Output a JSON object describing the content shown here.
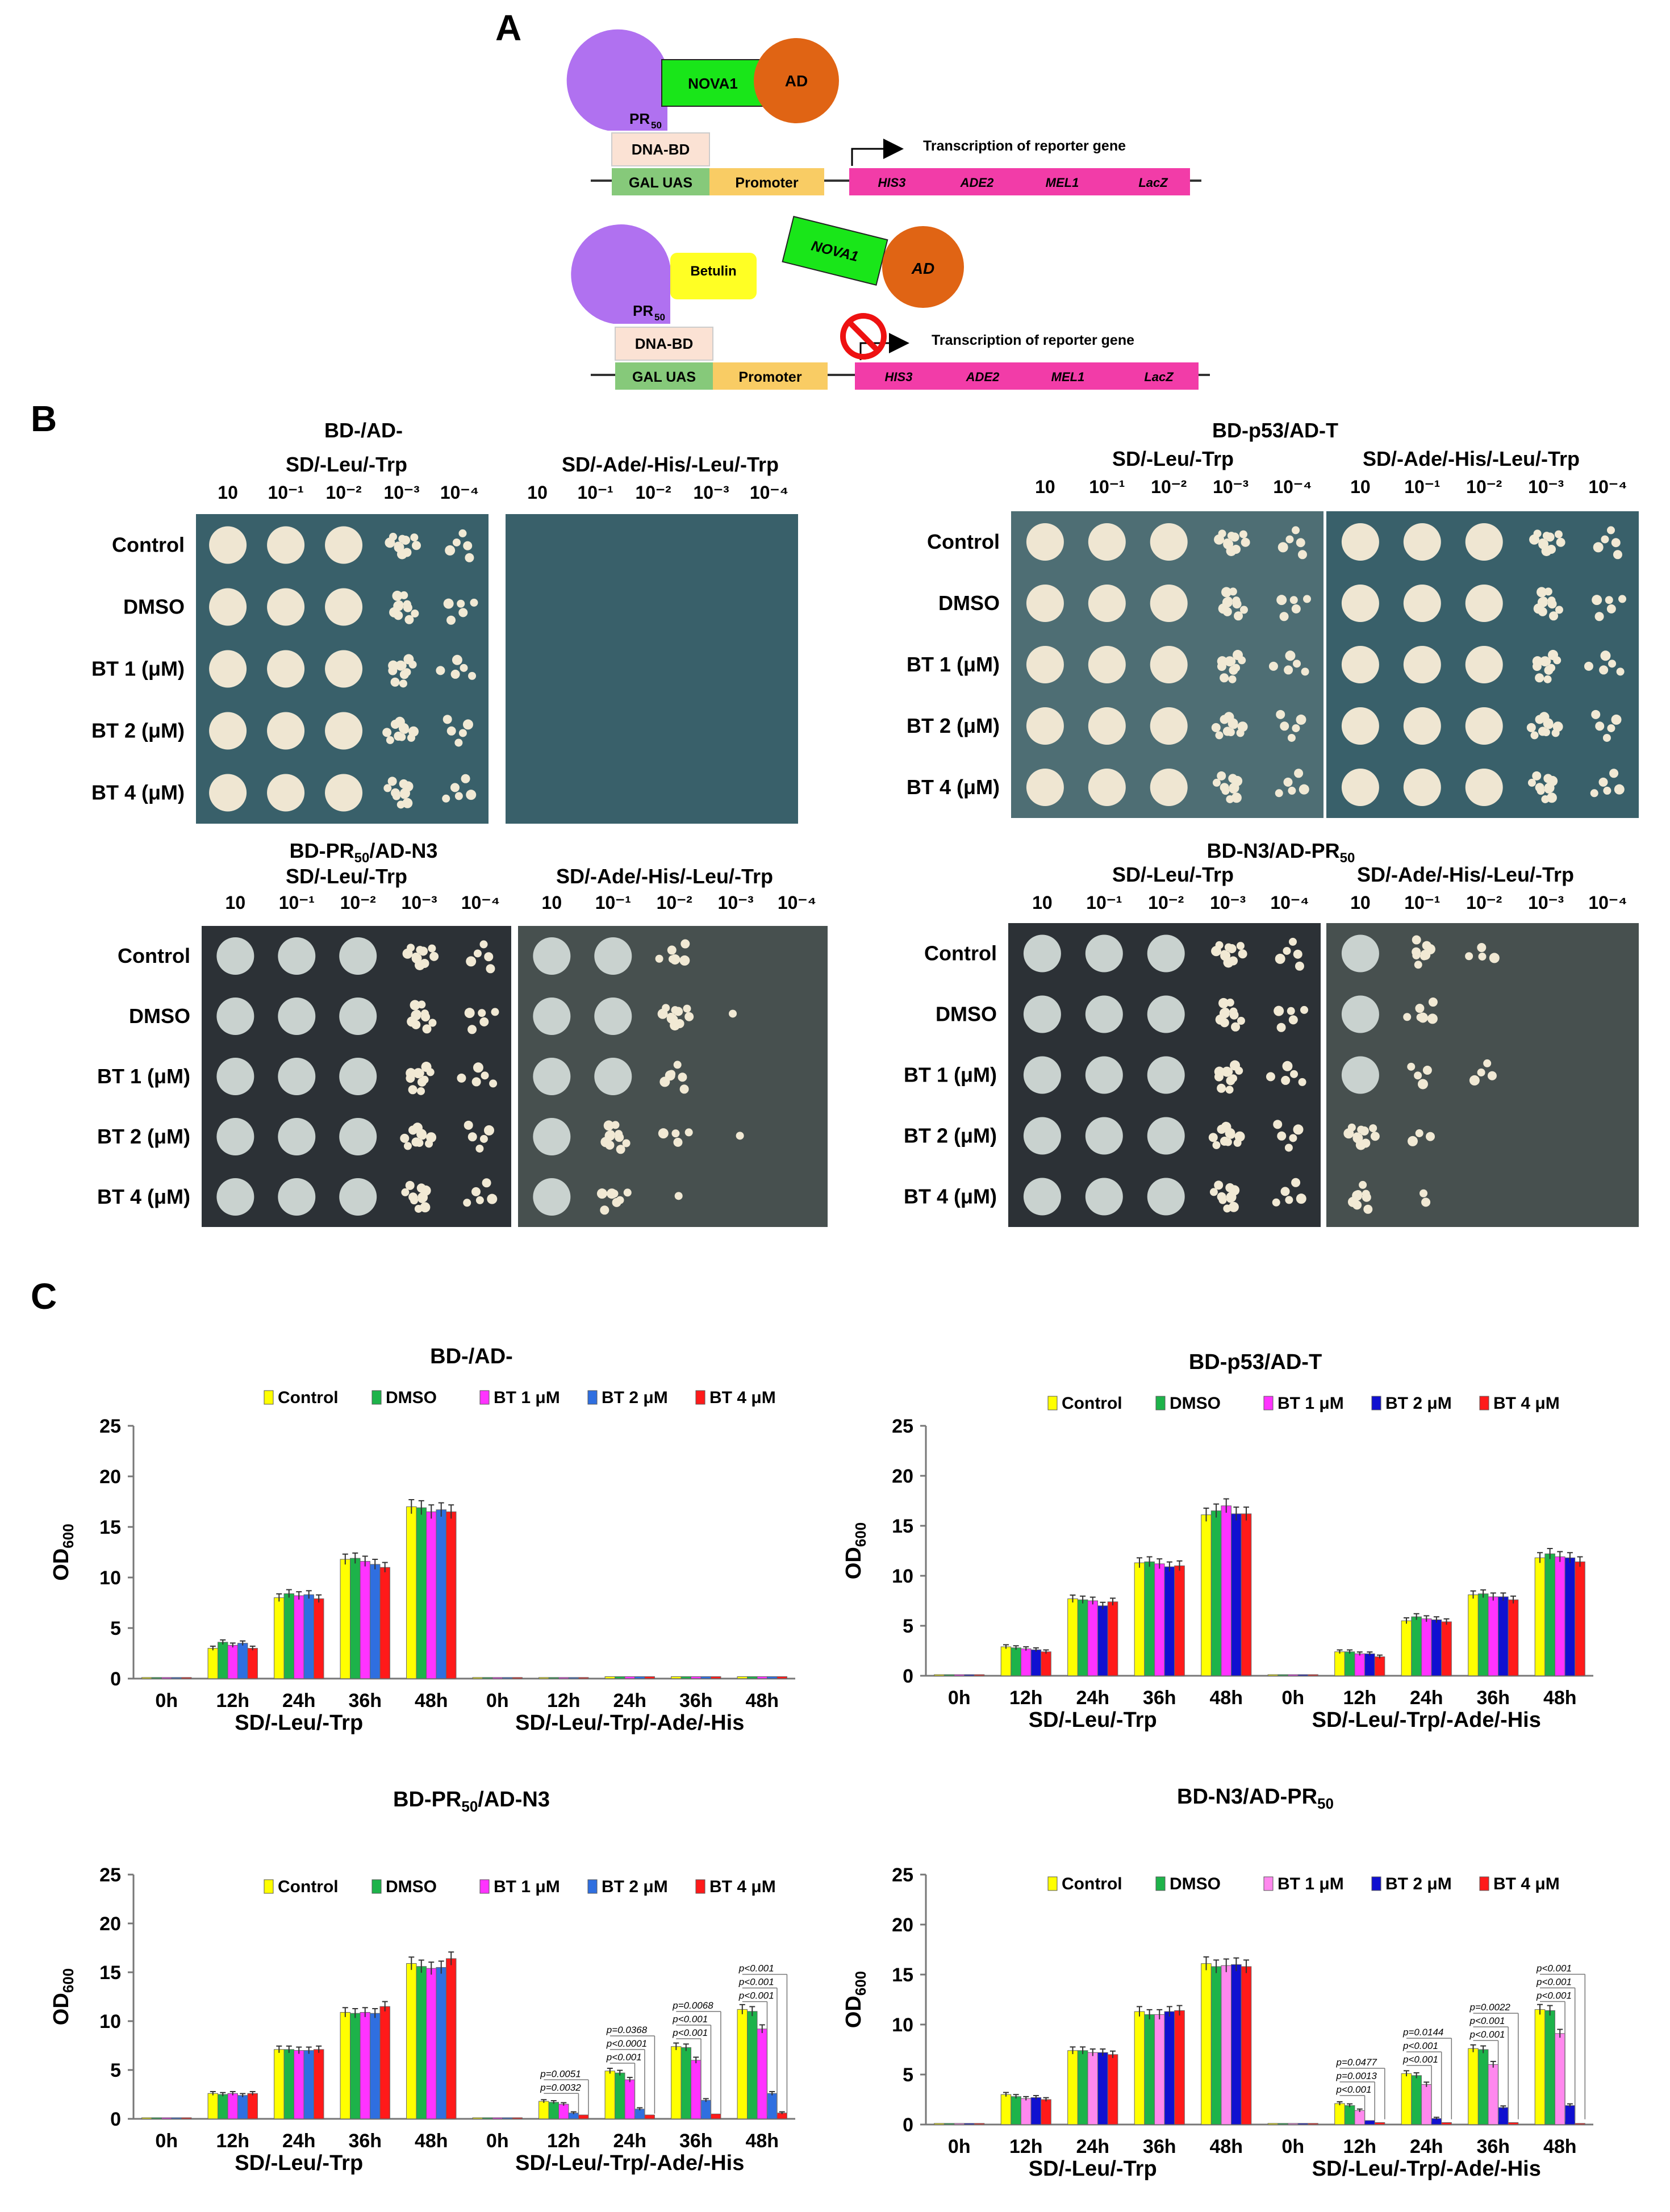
{
  "panels": {
    "a": "A",
    "b": "B",
    "c": "C"
  },
  "panel_a": {
    "nova1": "NOVA1",
    "ad": "AD",
    "pr": "PR",
    "pr_sub": "50",
    "dna_bd": "DNA-BD",
    "gal_uas": "GAL UAS",
    "promoter": "Promoter",
    "betulin": "Betulin",
    "transcription": "Transcription of reporter gene",
    "genes": [
      "HIS3",
      "ADE2",
      "MEL1",
      "LacZ"
    ]
  },
  "panel_b": {
    "dilutions": [
      "10",
      "10⁻¹",
      "10⁻²",
      "10⁻³",
      "10⁻⁴"
    ],
    "rows": [
      "Control",
      "DMSO",
      "BT 1 (μM)",
      "BT 2 (μM)",
      "BT 4 (μM)"
    ],
    "media": [
      "SD/-Leu/-Trp",
      "SD/-Ade/-His/-Leu/-Trp"
    ],
    "titles": [
      {
        "main": "BD-/AD-"
      },
      {
        "main": "BD-p53/AD-T"
      },
      {
        "pre": "BD-PR",
        "sub": "50",
        "post": "/AD-N3"
      },
      {
        "pre": "BD-N3/AD-PR",
        "sub": "50",
        "post": ""
      }
    ]
  },
  "chart_data": [
    {
      "type": "bar",
      "title": "BD-/AD-",
      "ylabel": "OD600",
      "ylim": [
        0,
        25
      ],
      "yticks": [
        "0",
        "5",
        "10",
        "15",
        "20",
        "25"
      ],
      "categories": [
        "0h",
        "12h",
        "24h",
        "36h",
        "48h",
        "0h",
        "12h",
        "24h",
        "36h",
        "48h"
      ],
      "group_labels": [
        "SD/-Leu/-Trp",
        "SD/-Leu/-Trp/-Ade/-His"
      ],
      "series": [
        {
          "name": "Control",
          "color": "#ffff00",
          "values": [
            0.1,
            3.0,
            8.0,
            11.8,
            17.0,
            0.1,
            0.1,
            0.2,
            0.2,
            0.2
          ]
        },
        {
          "name": "DMSO",
          "color": "#1db34a",
          "values": [
            0.1,
            3.6,
            8.4,
            11.9,
            16.9,
            0.1,
            0.1,
            0.2,
            0.2,
            0.2
          ]
        },
        {
          "name": "BT 1 μM",
          "color": "#ff33ff",
          "values": [
            0.1,
            3.3,
            8.2,
            11.6,
            16.5,
            0.1,
            0.1,
            0.2,
            0.2,
            0.2
          ]
        },
        {
          "name": "BT 2 μM",
          "color": "#2f6fe0",
          "values": [
            0.1,
            3.5,
            8.3,
            11.3,
            16.7,
            0.1,
            0.1,
            0.2,
            0.2,
            0.2
          ]
        },
        {
          "name": "BT 4 μM",
          "color": "#ff1a1a",
          "values": [
            0.1,
            3.0,
            7.9,
            11.0,
            16.5,
            0.1,
            0.1,
            0.2,
            0.2,
            0.2
          ]
        }
      ],
      "annotations": []
    },
    {
      "type": "bar",
      "title": "BD-p53/AD-T",
      "ylabel": "OD600",
      "ylim": [
        0,
        25
      ],
      "yticks": [
        "0",
        "5",
        "10",
        "15",
        "20",
        "25"
      ],
      "categories": [
        "0h",
        "12h",
        "24h",
        "36h",
        "48h",
        "0h",
        "12h",
        "24h",
        "36h",
        "48h"
      ],
      "group_labels": [
        "SD/-Leu/-Trp",
        "SD/-Leu/-Trp/-Ade/-His"
      ],
      "series": [
        {
          "name": "Control",
          "color": "#ffff00",
          "values": [
            0.1,
            2.9,
            7.7,
            11.3,
            16.1,
            0.1,
            2.4,
            5.5,
            8.1,
            11.8
          ]
        },
        {
          "name": "DMSO",
          "color": "#1db34a",
          "values": [
            0.1,
            2.8,
            7.6,
            11.4,
            16.5,
            0.1,
            2.4,
            5.9,
            8.2,
            12.2
          ]
        },
        {
          "name": "BT 1 μM",
          "color": "#ff33ff",
          "values": [
            0.1,
            2.7,
            7.5,
            11.2,
            17.0,
            0.1,
            2.2,
            5.7,
            7.9,
            11.9
          ]
        },
        {
          "name": "BT 2 μM",
          "color": "#1010d0",
          "values": [
            0.1,
            2.6,
            7.0,
            10.9,
            16.2,
            0.1,
            2.2,
            5.6,
            7.9,
            11.8
          ]
        },
        {
          "name": "BT 4 μM",
          "color": "#ff1a1a",
          "values": [
            0.1,
            2.4,
            7.4,
            11.0,
            16.2,
            0.1,
            1.9,
            5.4,
            7.6,
            11.4
          ]
        }
      ],
      "annotations": []
    },
    {
      "type": "bar",
      "title_pre": "BD-PR",
      "title_sub": "50",
      "title_post": "/AD-N3",
      "ylabel": "OD600",
      "ylim": [
        0,
        25
      ],
      "yticks": [
        "0",
        "5",
        "10",
        "15",
        "20",
        "25"
      ],
      "categories": [
        "0h",
        "12h",
        "24h",
        "36h",
        "48h",
        "0h",
        "12h",
        "24h",
        "36h",
        "48h"
      ],
      "group_labels": [
        "SD/-Leu/-Trp",
        "SD/-Leu/-Trp/-Ade/-His"
      ],
      "series": [
        {
          "name": "Control",
          "color": "#ffff00",
          "values": [
            0.1,
            2.6,
            7.1,
            10.9,
            15.9,
            0.1,
            1.8,
            4.9,
            7.4,
            11.2
          ]
        },
        {
          "name": "DMSO",
          "color": "#1db34a",
          "values": [
            0.1,
            2.5,
            7.1,
            10.8,
            15.6,
            0.1,
            1.7,
            4.7,
            7.3,
            11.0
          ]
        },
        {
          "name": "BT 1 μM",
          "color": "#ff33ff",
          "values": [
            0.1,
            2.6,
            7.0,
            10.9,
            15.4,
            0.1,
            1.5,
            4.0,
            6.0,
            9.2
          ]
        },
        {
          "name": "BT 2 μM",
          "color": "#2f6fe0",
          "values": [
            0.1,
            2.4,
            7.0,
            10.8,
            15.5,
            0.1,
            0.6,
            1.0,
            1.9,
            2.6
          ]
        },
        {
          "name": "BT 4 μM",
          "color": "#ff1a1a",
          "values": [
            0.1,
            2.6,
            7.1,
            11.5,
            16.4,
            0.1,
            0.4,
            0.4,
            0.5,
            0.6
          ]
        }
      ],
      "annotations": [
        {
          "group": 6,
          "labels": [
            "p=0.0032",
            "p=0.0051"
          ]
        },
        {
          "group": 7,
          "labels": [
            "p<0.001",
            "p<0.0001",
            "p=0.0368"
          ]
        },
        {
          "group": 8,
          "labels": [
            "p<0.001",
            "p<0.001",
            "p=0.0068"
          ]
        },
        {
          "group": 9,
          "labels": [
            "p<0.001",
            "p<0.001",
            "p<0.001"
          ]
        }
      ]
    },
    {
      "type": "bar",
      "title_pre": "BD-N3/AD-PR",
      "title_sub": "50",
      "title_post": "",
      "ylabel": "OD600",
      "ylim": [
        0,
        25
      ],
      "yticks": [
        "0",
        "5",
        "10",
        "15",
        "20",
        "25"
      ],
      "categories": [
        "0h",
        "12h",
        "24h",
        "36h",
        "48h",
        "0h",
        "12h",
        "24h",
        "36h",
        "48h"
      ],
      "group_labels": [
        "SD/-Leu/-Trp",
        "SD/-Leu/-Trp/-Ade/-His"
      ],
      "series": [
        {
          "name": "Control",
          "color": "#ffff00",
          "values": [
            0.1,
            3.0,
            7.4,
            11.3,
            16.1,
            0.1,
            2.1,
            5.1,
            7.6,
            11.5
          ]
        },
        {
          "name": "DMSO",
          "color": "#1db34a",
          "values": [
            0.1,
            2.8,
            7.4,
            11.0,
            15.8,
            0.1,
            1.9,
            4.9,
            7.5,
            11.4
          ]
        },
        {
          "name": "BT 1 μM",
          "color": "#ff88ee",
          "values": [
            0.1,
            2.6,
            7.2,
            11.0,
            15.9,
            0.1,
            1.4,
            4.0,
            6.0,
            9.1
          ]
        },
        {
          "name": "BT 2 μM",
          "color": "#1010d0",
          "values": [
            0.1,
            2.7,
            7.2,
            11.3,
            16.0,
            0.1,
            0.4,
            0.6,
            1.7,
            1.9
          ]
        },
        {
          "name": "BT 4 μM",
          "color": "#ff1a1a",
          "values": [
            0.1,
            2.5,
            7.0,
            11.4,
            15.8,
            0.1,
            0.2,
            0.2,
            0.2,
            0.1
          ]
        }
      ],
      "annotations": [
        {
          "group": 6,
          "labels": [
            "p<0.001",
            "p=0.0013",
            "p=0.0477"
          ]
        },
        {
          "group": 7,
          "labels": [
            "p<0.001",
            "p<0.001",
            "p=0.0144"
          ]
        },
        {
          "group": 8,
          "labels": [
            "p<0.001",
            "p<0.001",
            "p=0.0022"
          ]
        },
        {
          "group": 9,
          "labels": [
            "p<0.001",
            "p<0.001",
            "p<0.001"
          ]
        }
      ]
    }
  ]
}
